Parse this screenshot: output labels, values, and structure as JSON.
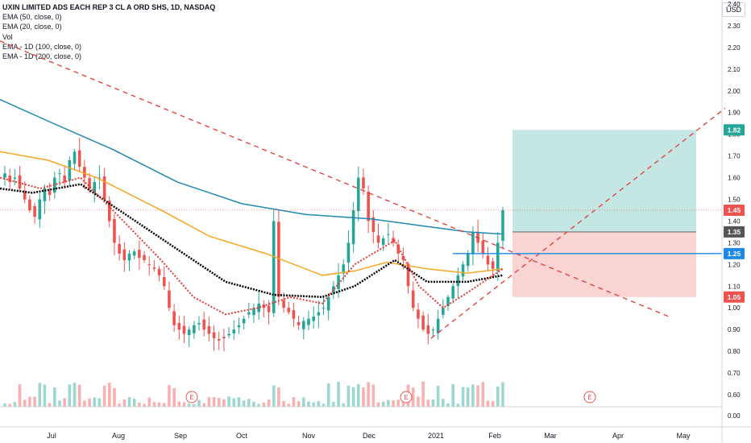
{
  "legend": {
    "title": "UXIN LIMITED ADS EACH REP 3 CL A ORD SHS, 1D, NASDAQ",
    "ema50": "EMA (50, close, 0)",
    "ema20": "EMA (20, close, 0)",
    "vol": "Vol",
    "ema100": "EMA - 1D (100, close, 0)",
    "ema200": "EMA - 1D (200, close, 0)"
  },
  "currency_button": "USD",
  "colors": {
    "up": "#26a69a",
    "down": "#ef5350",
    "ema200": "#1e88b0",
    "ema100": "#f5a623",
    "ema50": "#000000",
    "ema20": "#e53935",
    "trend": "#e53935",
    "hline": "#1e88e5",
    "target_zone": "#b2dfdb",
    "stop_zone": "#f8c9c8"
  },
  "chart_data": {
    "type": "candlestick",
    "symbol": "UXIN",
    "interval": "1D",
    "exchange": "NASDAQ",
    "y_axis": {
      "range": [
        0.57,
        2.41
      ],
      "ticks": [
        "2.40",
        "2.30",
        "2.20",
        "2.10",
        "2.00",
        "1.90",
        "1.80",
        "1.70",
        "1.60",
        "1.50",
        "1.40",
        "1.30",
        "1.20",
        "1.10",
        "1.00",
        "0.90",
        "0.80",
        "0.70",
        "0.60"
      ],
      "volume_pane_ticks": [
        "0.00"
      ]
    },
    "x_axis": {
      "ticks": [
        "Jul",
        "Aug",
        "Sep",
        "Oct",
        "Nov",
        "Dec",
        "2021",
        "Feb",
        "Mar",
        "Apr",
        "May"
      ]
    },
    "price_labels": [
      {
        "text": "1.82",
        "kind": "target",
        "value": 1.82
      },
      {
        "text": "1.45",
        "kind": "last",
        "value": 1.45
      },
      {
        "text": "1.35",
        "kind": "entry",
        "value": 1.35
      },
      {
        "text": "1.25",
        "kind": "horizontal-line",
        "value": 1.25
      },
      {
        "text": "1.05",
        "kind": "stop",
        "value": 1.05
      }
    ],
    "earnings_markers": [
      "E",
      "E",
      "E"
    ],
    "ema200_keypoints": [
      [
        1.96
      ],
      [
        1.86
      ],
      [
        1.7
      ],
      [
        1.52
      ],
      [
        1.44
      ],
      [
        1.41
      ],
      [
        1.34
      ]
    ],
    "ema100_keypoints": [
      [
        1.72
      ],
      [
        1.65
      ],
      [
        1.49
      ],
      [
        1.27
      ],
      [
        1.16
      ],
      [
        1.2
      ],
      [
        1.22
      ]
    ],
    "close_approx": [
      1.62,
      1.58,
      1.6,
      1.55,
      1.5,
      1.45,
      1.42,
      1.5,
      1.55,
      1.52,
      1.6,
      1.62,
      1.58,
      1.68,
      1.72,
      1.65,
      1.6,
      1.55,
      1.58,
      1.6,
      1.5,
      1.4,
      1.3,
      1.25,
      1.22,
      1.25,
      1.26,
      1.23,
      1.22,
      1.2,
      1.18,
      1.15,
      1.1,
      1.0,
      0.92,
      0.9,
      0.88,
      0.9,
      0.92,
      0.93,
      0.9,
      0.88,
      0.86,
      0.85,
      0.86,
      0.88,
      0.9,
      0.92,
      0.95,
      0.98,
      1.0,
      1.02,
      1.0,
      0.98,
      1.4,
      1.05,
      1.0,
      0.98,
      0.95,
      0.92,
      0.94,
      0.95,
      0.96,
      0.98,
      1.0,
      1.05,
      1.1,
      1.15,
      1.2,
      1.3,
      1.45,
      1.6,
      1.55,
      1.4,
      1.35,
      1.3,
      1.32,
      1.34,
      1.3,
      1.25,
      1.22,
      1.1,
      1.0,
      0.95,
      0.9,
      0.88,
      0.9,
      0.95,
      1.0,
      1.05,
      1.1,
      1.15,
      1.2,
      1.25,
      1.35,
      1.3,
      1.25,
      1.2,
      1.18,
      1.3,
      1.45
    ],
    "ylabel": "",
    "xlabel": "",
    "grid": false
  }
}
